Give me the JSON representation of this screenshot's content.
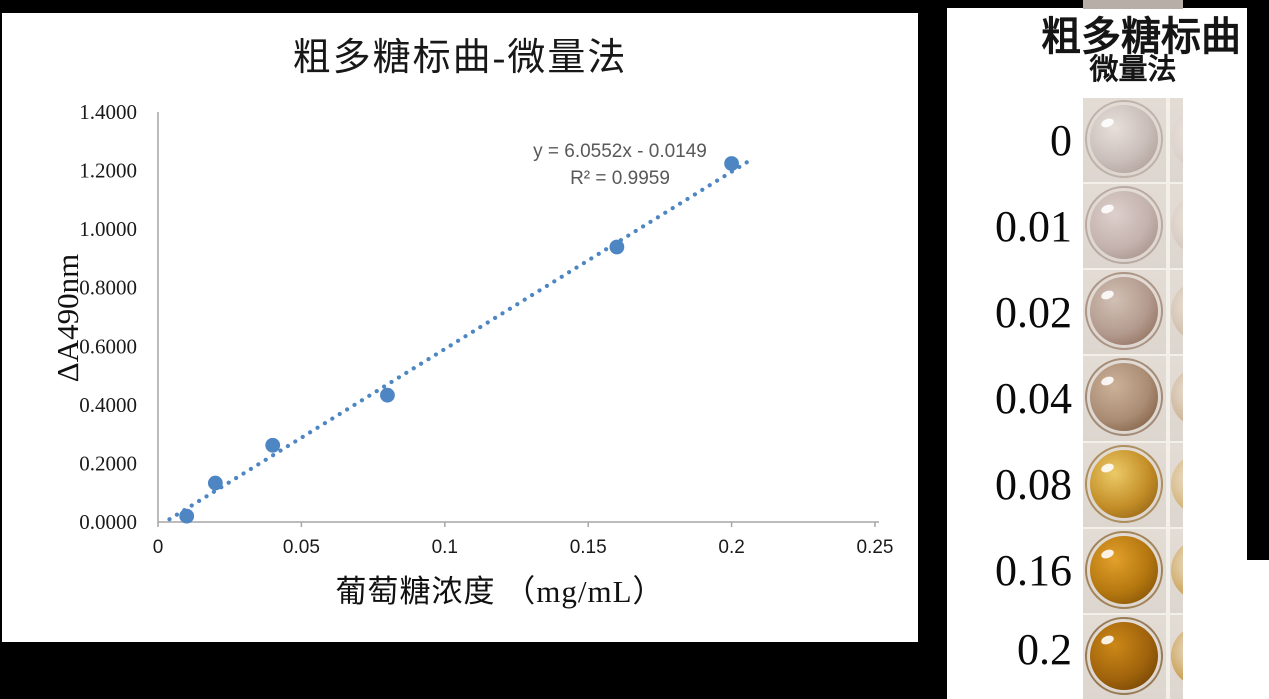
{
  "chart": {
    "title": "粗多糖标曲-微量法",
    "equation": "y = 6.0552x - 0.0149",
    "r_squared": "R² = 0.9959",
    "ylabel": "ΔA490nm",
    "xlabel": "葡萄糖浓度 （mg/mL）"
  },
  "chart_data": {
    "type": "scatter",
    "title": "粗多糖标曲-微量法",
    "xlabel": "葡萄糖浓度 （mg/mL）",
    "ylabel": "ΔA490nm",
    "x": [
      0.01,
      0.02,
      0.04,
      0.08,
      0.16,
      0.2
    ],
    "y": [
      0.02,
      0.133,
      0.262,
      0.433,
      0.939,
      1.224
    ],
    "trendline": {
      "type": "linear",
      "slope": 6.0552,
      "intercept": -0.0149,
      "equation": "y = 6.0552x - 0.0149",
      "r_squared": 0.9959,
      "style": "dotted"
    },
    "xlim": [
      0,
      0.25
    ],
    "ylim": [
      0,
      1.4
    ],
    "x_tick_values": [
      0,
      0.05,
      0.1,
      0.15,
      0.2,
      0.25
    ],
    "x_tick_labels": [
      "0",
      "0.05",
      "0.1",
      "0.15",
      "0.2",
      "0.25"
    ],
    "y_tick_values": [
      0,
      0.2,
      0.4,
      0.6,
      0.8,
      1.0,
      1.2,
      1.4
    ],
    "y_tick_labels": [
      "0.0000",
      "0.2000",
      "0.4000",
      "0.6000",
      "0.8000",
      "1.0000",
      "1.2000",
      "1.4000"
    ],
    "grid": false,
    "legend": "none",
    "marker_color": "#4e86c4",
    "trendline_color": "#4e86c4",
    "axis_color": "#a6a6a6",
    "equation_text_color": "#595959"
  },
  "wells_panel": {
    "title_line1": "粗多糖标曲",
    "title_line2": "微量法",
    "plastic_color": "#ddd6cf",
    "rows": [
      {
        "label": "0",
        "liquid": "#c9bdb9",
        "highlight": "#e7dfdb",
        "ring": "#a9988f",
        "side": "#d6cdc6"
      },
      {
        "label": "0.01",
        "liquid": "#c4b2ae",
        "highlight": "#ddd0cc",
        "ring": "#a08a82",
        "side": "#d2c6bd"
      },
      {
        "label": "0.02",
        "liquid": "#b39a8e",
        "highlight": "#d2c0b4",
        "ring": "#8a6753",
        "side": "#cdbaa7"
      },
      {
        "label": "0.04",
        "liquid": "#aa8c74",
        "highlight": "#ccb199",
        "ring": "#7a573a",
        "side": "#c9af92"
      },
      {
        "label": "0.08",
        "liquid": "#c38e28",
        "highlight": "#ecca67",
        "ring": "#8a5c12",
        "side": "#d2ae6e"
      },
      {
        "label": "0.16",
        "liquid": "#b4770f",
        "highlight": "#e3a02b",
        "ring": "#7a4b08",
        "side": "#cb9f50"
      },
      {
        "label": "0.2",
        "liquid": "#a0630c",
        "highlight": "#cc8817",
        "ring": "#693d05",
        "side": "#c69845"
      }
    ]
  }
}
